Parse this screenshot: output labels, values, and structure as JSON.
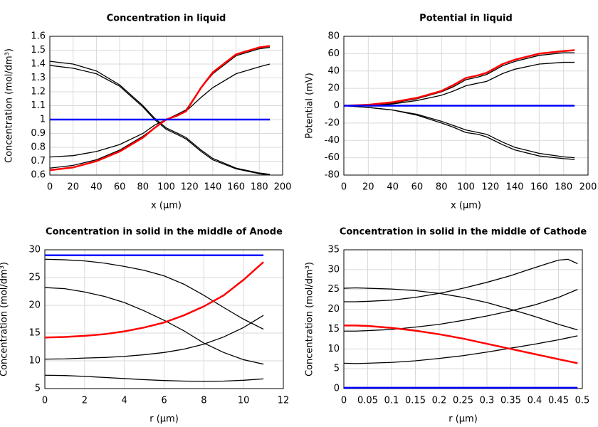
{
  "chart_data": [
    {
      "type": "line",
      "title": "Concentration in liquid",
      "xlabel": "x (µm)",
      "ylabel": "Concentration (mol/dm³)",
      "xlim": [
        0,
        200
      ],
      "ylim": [
        0.6,
        1.6
      ],
      "xticks": [
        0,
        20,
        40,
        60,
        80,
        100,
        120,
        140,
        160,
        180,
        200
      ],
      "yticks": [
        0.6,
        0.7,
        0.8,
        0.9,
        1,
        1.1,
        1.2,
        1.3,
        1.4,
        1.5,
        1.6
      ],
      "grid": true,
      "x": [
        0,
        20,
        40,
        60,
        80,
        90,
        100,
        110,
        117,
        130,
        140,
        160,
        180,
        189
      ],
      "series": [
        {
          "color": "#000000",
          "values": [
            1.42,
            1.4,
            1.35,
            1.25,
            1.1,
            1.01,
            0.94,
            0.9,
            0.87,
            0.78,
            0.72,
            0.65,
            0.615,
            0.605
          ]
        },
        {
          "color": "#000000",
          "values": [
            1.39,
            1.37,
            1.33,
            1.24,
            1.09,
            1.0,
            0.93,
            0.89,
            0.86,
            0.77,
            0.71,
            0.645,
            0.61,
            0.6
          ]
        },
        {
          "color": "#000000",
          "values": [
            0.73,
            0.74,
            0.77,
            0.82,
            0.9,
            0.96,
            1.0,
            1.03,
            1.06,
            1.16,
            1.23,
            1.33,
            1.38,
            1.4
          ]
        },
        {
          "color": "#000000",
          "values": [
            0.65,
            0.67,
            0.71,
            0.78,
            0.88,
            0.94,
            1.0,
            1.04,
            1.07,
            1.23,
            1.33,
            1.46,
            1.51,
            1.52
          ]
        },
        {
          "color": "#ff0000",
          "values": [
            0.635,
            0.655,
            0.7,
            0.77,
            0.87,
            0.94,
            1.0,
            1.03,
            1.06,
            1.23,
            1.34,
            1.47,
            1.52,
            1.53
          ]
        },
        {
          "color": "#0000ff",
          "values": [
            1,
            1,
            1,
            1,
            1,
            1,
            1,
            1,
            1,
            1,
            1,
            1,
            1,
            1
          ]
        }
      ]
    },
    {
      "type": "line",
      "title": "Potential in liquid",
      "xlabel": "x (µm)",
      "ylabel": "Potential (mV)",
      "xlim": [
        0,
        200
      ],
      "ylim": [
        -80,
        80
      ],
      "xticks": [
        0,
        20,
        40,
        60,
        80,
        100,
        120,
        140,
        160,
        180,
        200
      ],
      "yticks": [
        -80,
        -60,
        -40,
        -20,
        0,
        20,
        40,
        60,
        80
      ],
      "grid": true,
      "x": [
        0,
        20,
        40,
        60,
        80,
        90,
        100,
        110,
        117,
        130,
        140,
        160,
        180,
        189
      ],
      "series": [
        {
          "color": "#000000",
          "values": [
            0,
            1,
            3,
            8,
            16,
            22,
            30,
            33,
            36,
            46,
            51,
            58,
            61,
            61
          ]
        },
        {
          "color": "#000000",
          "values": [
            0,
            0,
            2,
            6,
            12,
            17,
            23,
            26,
            28,
            37,
            42,
            48,
            50,
            50
          ]
        },
        {
          "color": "#000000",
          "values": [
            0,
            -2,
            -5,
            -10,
            -18,
            -23,
            -28,
            -31,
            -33,
            -42,
            -48,
            -55,
            -59,
            -60
          ]
        },
        {
          "color": "#000000",
          "values": [
            0,
            -2,
            -5,
            -11,
            -20,
            -25,
            -31,
            -33,
            -36,
            -45,
            -51,
            -58,
            -61,
            -62
          ]
        },
        {
          "color": "#ff0000",
          "values": [
            0,
            1,
            4,
            9,
            17,
            24,
            32,
            35,
            38,
            48,
            53,
            60,
            63,
            64
          ]
        },
        {
          "color": "#0000ff",
          "values": [
            0,
            0,
            0,
            0,
            0,
            0,
            0,
            0,
            0,
            0,
            0,
            0,
            0,
            0
          ]
        }
      ]
    },
    {
      "type": "line",
      "title": "Concentration in solid in the middle of Anode",
      "xlabel": "r (µm)",
      "ylabel": "Concentration (mol/dm³)",
      "xlim": [
        0,
        12
      ],
      "ylim": [
        5,
        30
      ],
      "xticks": [
        0,
        2,
        4,
        6,
        8,
        10,
        12
      ],
      "yticks": [
        5,
        10,
        15,
        20,
        25,
        30
      ],
      "grid": true,
      "x": [
        0,
        1,
        2,
        3,
        4,
        5,
        6,
        7,
        8,
        9,
        10,
        11
      ],
      "series": [
        {
          "color": "#000000",
          "values": [
            28.3,
            28.2,
            28.0,
            27.6,
            27.0,
            26.3,
            25.3,
            23.8,
            21.8,
            19.6,
            17.5,
            15.7
          ]
        },
        {
          "color": "#000000",
          "values": [
            23.2,
            23.0,
            22.4,
            21.6,
            20.5,
            19.0,
            17.3,
            15.4,
            13.2,
            11.5,
            10.2,
            9.4
          ]
        },
        {
          "color": "#000000",
          "values": [
            10.3,
            10.35,
            10.5,
            10.6,
            10.8,
            11.1,
            11.5,
            12.1,
            13.0,
            14.3,
            16.0,
            18.2
          ]
        },
        {
          "color": "#000000",
          "values": [
            7.4,
            7.35,
            7.2,
            7.0,
            6.8,
            6.6,
            6.45,
            6.35,
            6.3,
            6.35,
            6.5,
            6.75
          ]
        },
        {
          "color": "#ff0000",
          "values": [
            14.2,
            14.3,
            14.5,
            14.8,
            15.3,
            16.0,
            16.9,
            18.2,
            19.8,
            21.8,
            24.6,
            27.8
          ]
        },
        {
          "color": "#0000ff",
          "values": [
            29,
            29,
            29,
            29,
            29,
            29,
            29,
            29,
            29,
            29,
            29,
            29
          ]
        }
      ]
    },
    {
      "type": "line",
      "title": "Concentration in solid in the middle of Cathode",
      "xlabel": "r (µm)",
      "ylabel": "Concentration (mol/dm³)",
      "xlim": [
        0,
        0.5
      ],
      "ylim": [
        0,
        35
      ],
      "xticks": [
        0,
        0.05,
        0.1,
        0.15,
        0.2,
        0.25,
        0.3,
        0.35,
        0.4,
        0.45,
        0.5
      ],
      "yticks": [
        0,
        5,
        10,
        15,
        20,
        25,
        30,
        35
      ],
      "grid": true,
      "x": [
        0,
        0.025,
        0.05,
        0.1,
        0.15,
        0.2,
        0.25,
        0.3,
        0.35,
        0.4,
        0.45,
        0.47,
        0.49
      ],
      "series": [
        {
          "color": "#000000",
          "values": [
            25.3,
            25.4,
            25.3,
            25.1,
            24.7,
            24.0,
            23.0,
            21.7,
            20.0,
            18.2,
            16.2,
            15.5,
            14.8
          ]
        },
        {
          "color": "#000000",
          "values": [
            21.9,
            21.9,
            22.0,
            22.3,
            23.0,
            24.0,
            25.3,
            26.8,
            28.5,
            30.5,
            32.4,
            32.6,
            31.5
          ]
        },
        {
          "color": "#000000",
          "values": [
            14.5,
            14.5,
            14.6,
            14.9,
            15.5,
            16.2,
            17.2,
            18.3,
            19.6,
            21.1,
            23.0,
            24.0,
            25.0
          ]
        },
        {
          "color": "#000000",
          "values": [
            6.4,
            6.3,
            6.4,
            6.6,
            7.0,
            7.6,
            8.3,
            9.2,
            10.2,
            11.2,
            12.3,
            12.8,
            13.3
          ]
        },
        {
          "color": "#ff0000",
          "values": [
            15.9,
            15.9,
            15.8,
            15.3,
            14.6,
            13.7,
            12.6,
            11.3,
            10.0,
            8.7,
            7.4,
            6.9,
            6.4
          ]
        },
        {
          "color": "#0000ff",
          "values": [
            0.2,
            0.2,
            0.2,
            0.2,
            0.2,
            0.2,
            0.2,
            0.2,
            0.2,
            0.2,
            0.2,
            0.2,
            0.2
          ]
        }
      ]
    }
  ]
}
